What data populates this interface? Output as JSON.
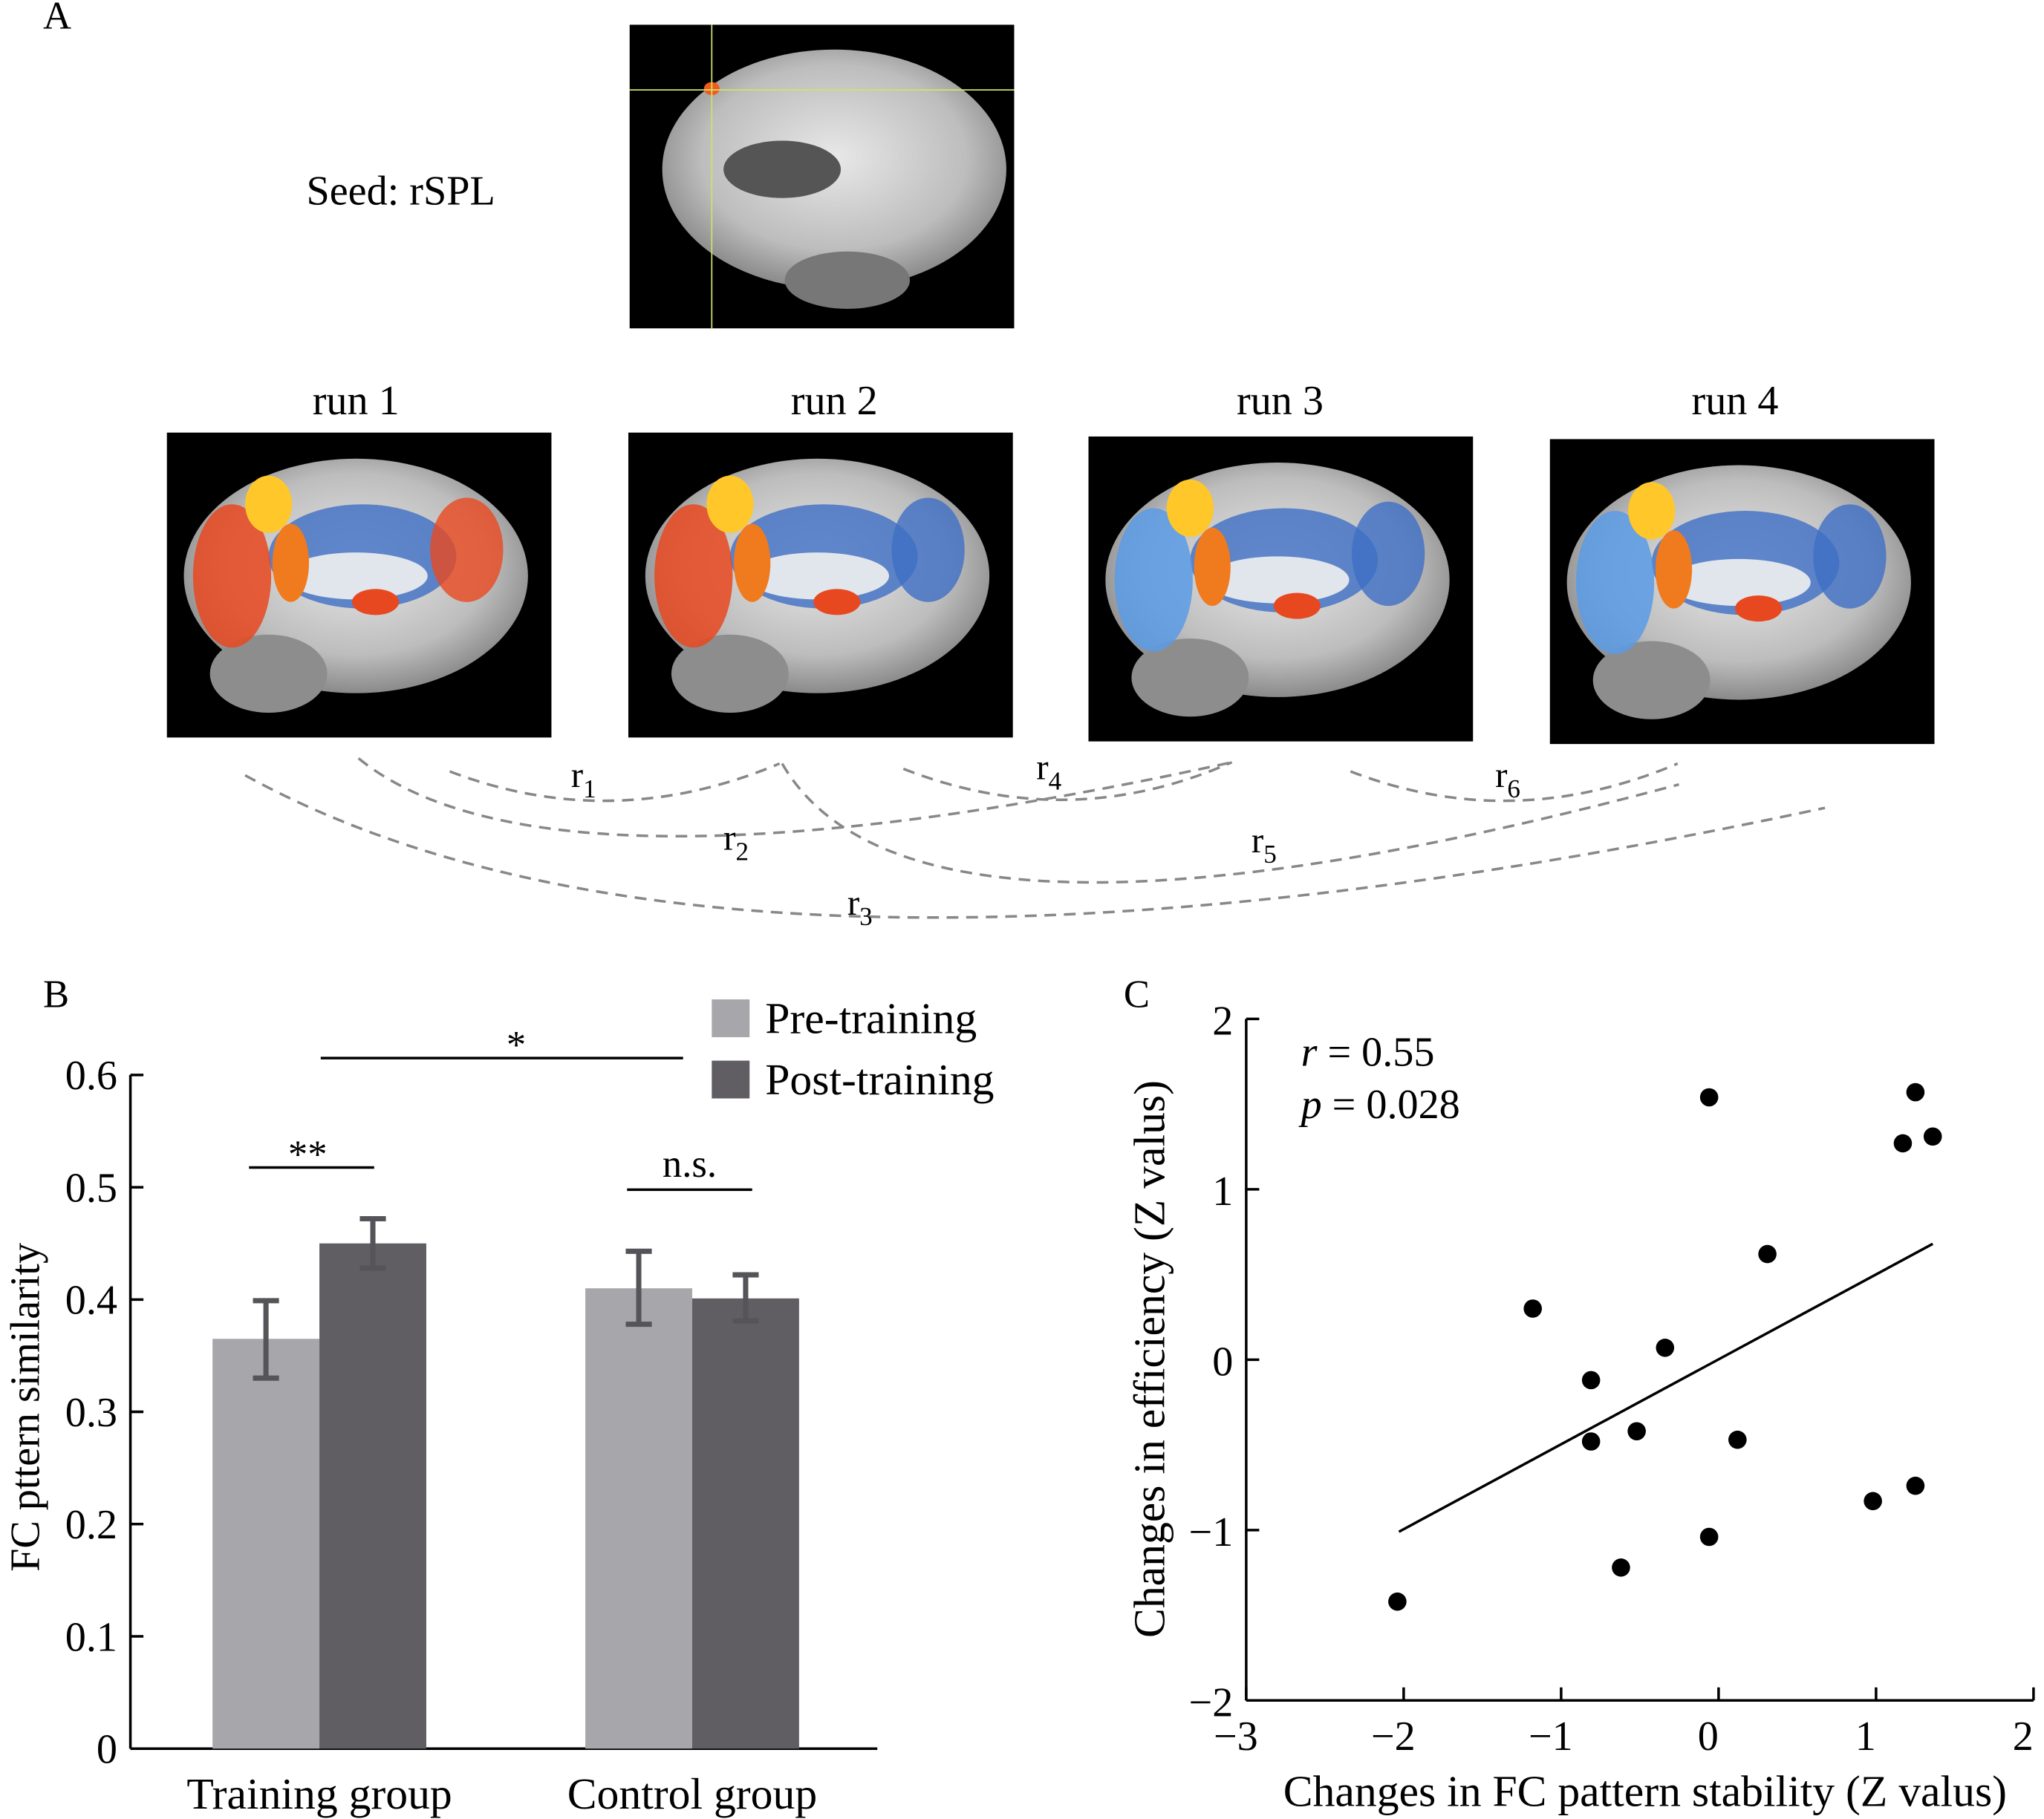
{
  "panel_a": {
    "label": "A",
    "seed_label": "Seed: rSPL",
    "runs": [
      "run 1",
      "run 2",
      "run 3",
      "run 4"
    ],
    "correlations": [
      {
        "main": "r",
        "sub": "1"
      },
      {
        "main": "r",
        "sub": "2"
      },
      {
        "main": "r",
        "sub": "3"
      },
      {
        "main": "r",
        "sub": "4"
      },
      {
        "main": "r",
        "sub": "5"
      },
      {
        "main": "r",
        "sub": "6"
      }
    ]
  },
  "chart_data": [
    {
      "panel_label": "B",
      "type": "bar",
      "title": "",
      "xlabel": "",
      "ylabel": "FC pttern similarity",
      "ylim": [
        0,
        0.6
      ],
      "yticks": [
        "0",
        "0.1",
        "0.2",
        "0.3",
        "0.4",
        "0.5",
        "0.6"
      ],
      "categories": [
        "Training group",
        "Control group"
      ],
      "series": [
        {
          "name": "Pre-training",
          "color": "#a7a6ab",
          "values": [
            0.365,
            0.41
          ],
          "err_low": [
            0.33,
            0.378
          ],
          "err_high": [
            0.399,
            0.443
          ]
        },
        {
          "name": "Post-training",
          "color": "#605e62",
          "values": [
            0.45,
            0.401
          ],
          "err_low": [
            0.428,
            0.381
          ],
          "err_high": [
            0.472,
            0.422
          ]
        }
      ],
      "error_bar_color": "#555458",
      "legend": "top-right",
      "annotations": [
        {
          "text": "**",
          "between": "Training group pre vs post"
        },
        {
          "text": "n.s.",
          "between": "Control group pre vs post"
        },
        {
          "text": "*",
          "between": "Training group vs Control group"
        }
      ]
    },
    {
      "panel_label": "C",
      "type": "scatter",
      "xlabel": "Changes in FC pattern stability (Z valus)",
      "ylabel": "Changes in efficiency (Z valus)",
      "xlim": [
        -3,
        2
      ],
      "ylim": [
        -2,
        2
      ],
      "xticks": [
        "−3",
        "−2",
        "−1",
        "0",
        "1",
        "2"
      ],
      "yticks": [
        "−2",
        "−1",
        "0",
        "1",
        "2"
      ],
      "stats": {
        "r_label": "r",
        "r_value": " = 0.55",
        "p_label": "p",
        "p_value": " = 0.028"
      },
      "points": [
        [
          -2.04,
          -1.42
        ],
        [
          -1.18,
          0.3
        ],
        [
          -0.81,
          -0.12
        ],
        [
          -0.81,
          -0.48
        ],
        [
          -0.52,
          -0.42
        ],
        [
          -0.34,
          0.07
        ],
        [
          -0.62,
          -1.22
        ],
        [
          -0.06,
          1.54
        ],
        [
          -0.06,
          -1.04
        ],
        [
          0.12,
          -0.47
        ],
        [
          0.31,
          0.62
        ],
        [
          0.98,
          -0.83
        ],
        [
          1.25,
          -0.74
        ],
        [
          1.17,
          1.27
        ],
        [
          1.25,
          1.57
        ],
        [
          1.36,
          1.31
        ]
      ],
      "fit_line": [
        [
          -2.03,
          -1.01
        ],
        [
          1.36,
          0.68
        ]
      ]
    }
  ]
}
